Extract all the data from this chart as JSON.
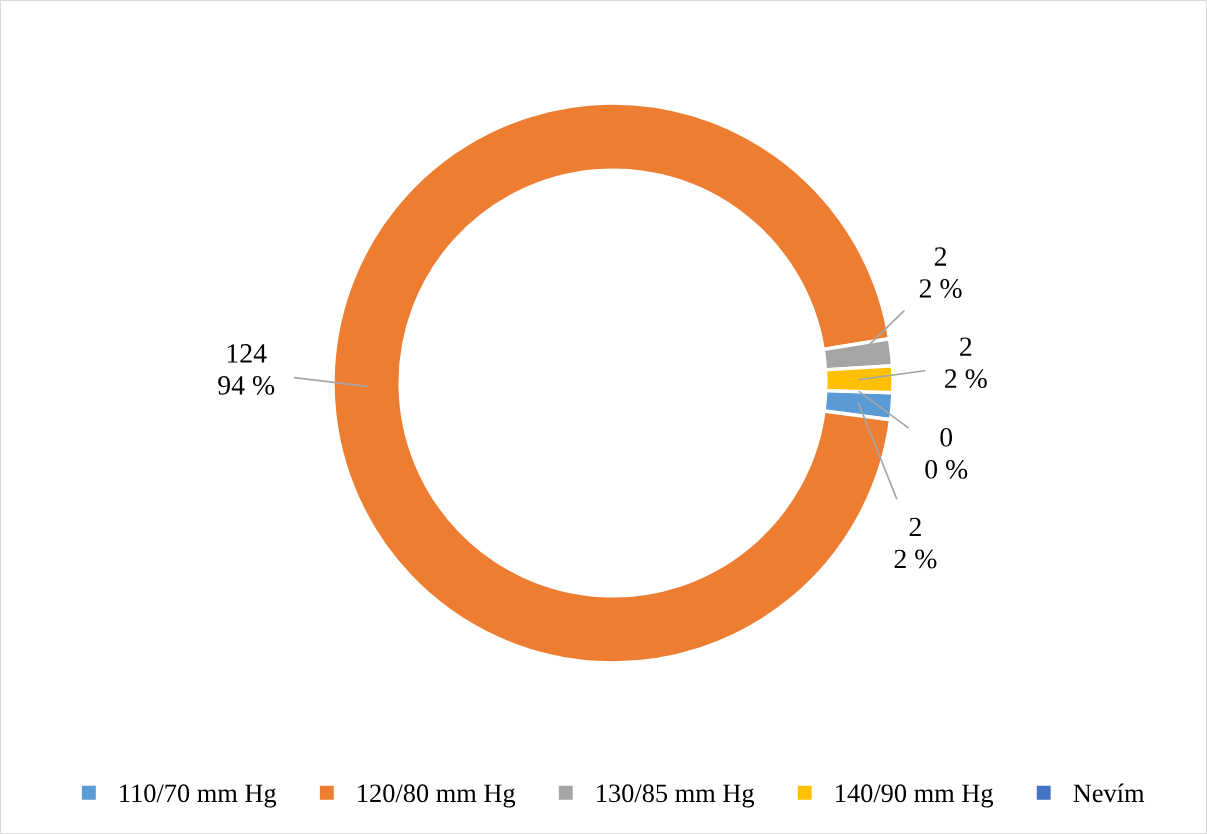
{
  "chart_data": {
    "type": "donut",
    "categories": [
      "110/70 mm Hg",
      "120/80 mm Hg",
      "130/85 mm Hg",
      "140/90 mm Hg",
      "Nevím"
    ],
    "values": [
      2,
      124,
      2,
      2,
      0
    ],
    "colors": [
      "#5b9bd5",
      "#ed7d31",
      "#a5a5a5",
      "#ffc000",
      "#4472c4"
    ],
    "value_labels": [
      "2\n2 %",
      "124\n94 %",
      "2\n2 %",
      "2\n2 %",
      "0\n0 %"
    ],
    "legend": "bottom"
  }
}
